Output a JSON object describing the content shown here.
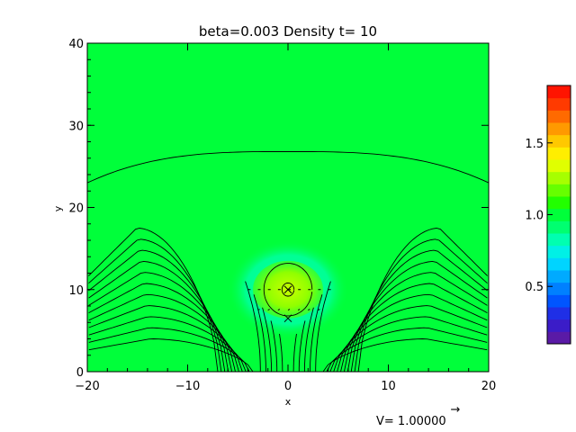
{
  "chart_data": {
    "type": "heatmap",
    "title": "beta=0.003 Density t= 10",
    "xlabel": "x",
    "ylabel": "y",
    "xlim": [
      -20,
      20
    ],
    "ylim": [
      0,
      40
    ],
    "x_ticks": [
      -20,
      -10,
      0,
      10,
      20
    ],
    "x_tick_labels": [
      "−20",
      "−10",
      "0",
      "10",
      "20"
    ],
    "y_ticks": [
      0,
      10,
      20,
      30,
      40
    ],
    "y_tick_labels": [
      "0",
      "10",
      "20",
      "30",
      "40"
    ],
    "background_density": 1.0,
    "colorbar": {
      "range": [
        0.1,
        1.9
      ],
      "ticks": [
        0.5,
        1.0,
        1.5
      ],
      "tick_labels": [
        "0.5",
        "1.0",
        "1.5"
      ],
      "colors": [
        "#5a1aa6",
        "#3b1cc8",
        "#1f2fe6",
        "#0055ff",
        "#0080ff",
        "#00aaff",
        "#00d4ff",
        "#00f0e6",
        "#00ffb0",
        "#00ff70",
        "#00ff3a",
        "#22ff00",
        "#66ff00",
        "#a6ff00",
        "#e0ff00",
        "#ffee00",
        "#ffc800",
        "#ff9900",
        "#ff6a00",
        "#ff3a00",
        "#ff1400"
      ]
    },
    "blob": {
      "center": [
        0,
        10
      ],
      "radius": 3.5,
      "density": 1.3,
      "halo_radius": 6,
      "halo_density": 0.85
    },
    "field_lines_mid_x": [
      1,
      2,
      3,
      4,
      5
    ],
    "field_lines_corner": [
      0.8,
      1.6,
      2.5,
      3.5,
      4.6,
      5.8,
      7.2,
      8.8,
      10.6,
      12.7,
      15.2
    ],
    "field_lines_open_y": [
      26.8
    ],
    "markers": [
      [
        0,
        10
      ],
      [
        0,
        6.5
      ]
    ],
    "vector_legend": {
      "label": "V= 1.00000",
      "arrow": "→"
    }
  }
}
